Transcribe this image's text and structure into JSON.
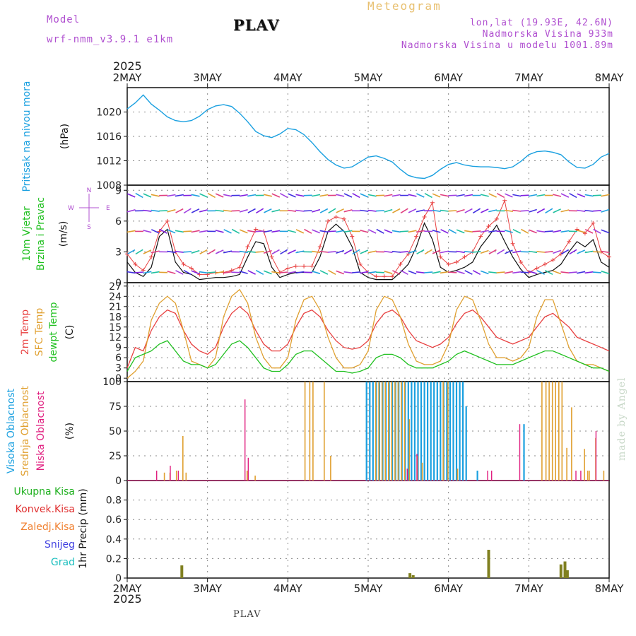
{
  "header": {
    "model_label": "Model",
    "model_name": "wrf-nmm_v3.9.1  e1km",
    "station": "PLAV",
    "title": "Meteogram",
    "lonlat": "lon,lat (19.93E, 42.6N)",
    "elevation": "Nadmorska Visina 933m",
    "model_elevation": "Nadmorska Visina u modelu 1001.89m",
    "year_top": "2025",
    "year_bottom": "2025",
    "footer_station": "PLAV",
    "watermark": "made by Angel"
  },
  "colors": {
    "pressure": "#1aa0e0",
    "temp2m": "#e84040",
    "sfc_temp": "#e0a030",
    "dewpt": "#20c020",
    "wind_speed": "#111111",
    "gust": "#e84040",
    "cloud_high": "#1aa0e0",
    "cloud_mid": "#e0a030",
    "cloud_low": "#e02080",
    "precip_total": "#20b020",
    "precip_conv": "#e03030",
    "precip_freezing": "#f08030",
    "precip_snow": "#4040e0",
    "precip_graupel": "#20c0c0",
    "precip_bar": "#808020"
  },
  "chart_data": [
    {
      "type": "line",
      "name": "pressure",
      "ylabel_lines": [
        "Pritisak na nivou mora",
        "(hPa)"
      ],
      "ylim": [
        1008,
        1024
      ],
      "yticks": [
        "1008",
        "1012",
        "1016",
        "1020"
      ],
      "x": [
        0,
        0.1,
        0.2,
        0.3,
        0.4,
        0.5,
        0.6,
        0.7,
        0.8,
        0.9,
        1.0,
        1.1,
        1.2,
        1.3,
        1.4,
        1.5,
        1.6,
        1.7,
        1.8,
        1.9,
        2.0,
        2.1,
        2.2,
        2.3,
        2.4,
        2.5,
        2.6,
        2.7,
        2.8,
        2.9,
        3.0,
        3.1,
        3.2,
        3.3,
        3.4,
        3.5,
        3.6,
        3.7,
        3.8,
        3.9,
        4.0,
        4.1,
        4.2,
        4.3,
        4.4,
        4.5,
        4.6,
        4.7,
        4.8,
        4.9,
        5.0,
        5.1,
        5.2,
        5.3,
        5.4,
        5.5,
        5.6,
        5.7,
        5.8,
        5.9,
        6.0
      ],
      "values": [
        1020.5,
        1021.5,
        1022.8,
        1021.3,
        1020.3,
        1019.2,
        1018.6,
        1018.4,
        1018.6,
        1019.3,
        1020.4,
        1021.0,
        1021.2,
        1020.9,
        1019.8,
        1018.4,
        1016.8,
        1016.1,
        1015.8,
        1016.4,
        1017.3,
        1017.1,
        1016.3,
        1015.0,
        1013.5,
        1012.2,
        1011.3,
        1010.8,
        1011.0,
        1011.8,
        1012.6,
        1012.8,
        1012.4,
        1011.8,
        1010.6,
        1009.6,
        1009.2,
        1009.1,
        1009.6,
        1010.6,
        1011.4,
        1011.7,
        1011.3,
        1011.1,
        1011.0,
        1011.0,
        1010.9,
        1010.7,
        1011.0,
        1011.9,
        1013.0,
        1013.5,
        1013.6,
        1013.4,
        1013.0,
        1011.8,
        1010.9,
        1010.8,
        1011.4,
        1012.6,
        1013.2
      ]
    },
    {
      "type": "line",
      "name": "wind",
      "ylabel_lines": [
        "10m Vjetar",
        "Brzina i Pravac",
        "(m/s)"
      ],
      "compass_labels": [
        "N",
        "S",
        "W",
        "E"
      ],
      "ylim": [
        0,
        9.5
      ],
      "yticks": [
        "0",
        "3",
        "6",
        "9"
      ],
      "x": [
        0,
        0.1,
        0.2,
        0.3,
        0.4,
        0.5,
        0.6,
        0.7,
        0.8,
        0.9,
        1.0,
        1.1,
        1.2,
        1.3,
        1.4,
        1.5,
        1.6,
        1.7,
        1.8,
        1.9,
        2.0,
        2.1,
        2.2,
        2.3,
        2.4,
        2.5,
        2.6,
        2.7,
        2.8,
        2.9,
        3.0,
        3.1,
        3.2,
        3.3,
        3.4,
        3.5,
        3.6,
        3.7,
        3.8,
        3.9,
        4.0,
        4.1,
        4.2,
        4.3,
        4.4,
        4.5,
        4.6,
        4.7,
        4.8,
        4.9,
        5.0,
        5.1,
        5.2,
        5.3,
        5.4,
        5.5,
        5.6,
        5.7,
        5.8,
        5.9,
        6.0
      ],
      "values": [
        2.0,
        1.0,
        0.6,
        1.5,
        4.5,
        5.2,
        2.0,
        1.0,
        0.8,
        0.3,
        0.4,
        0.5,
        0.5,
        0.6,
        0.8,
        2.5,
        4.0,
        3.8,
        1.5,
        0.5,
        0.8,
        1.0,
        1.0,
        1.0,
        2.5,
        5.0,
        5.7,
        5.0,
        3.5,
        1.0,
        0.5,
        0.3,
        0.3,
        0.3,
        1.0,
        1.8,
        3.5,
        5.8,
        4.2,
        1.5,
        1.0,
        1.2,
        1.5,
        2.0,
        3.5,
        4.5,
        5.6,
        4.0,
        2.5,
        1.3,
        0.5,
        0.8,
        1.0,
        1.2,
        1.8,
        3.0,
        4.0,
        3.5,
        4.2,
        2.0,
        1.5
      ],
      "gust": [
        2.8,
        1.8,
        1.2,
        2.5,
        5.0,
        6.0,
        3.0,
        1.8,
        1.4,
        0.8,
        0.8,
        1.0,
        1.0,
        1.2,
        1.5,
        3.5,
        5.2,
        5.0,
        2.5,
        1.0,
        1.4,
        1.6,
        1.6,
        1.6,
        3.5,
        6.0,
        6.4,
        6.2,
        4.5,
        1.8,
        1.0,
        0.6,
        0.6,
        0.6,
        1.8,
        2.8,
        4.5,
        6.4,
        7.8,
        2.5,
        1.8,
        2.0,
        2.5,
        3.0,
        4.5,
        5.5,
        6.2,
        8.0,
        3.8,
        2.0,
        1.0,
        1.4,
        1.8,
        2.2,
        2.8,
        4.0,
        5.2,
        4.8,
        5.8,
        3.0,
        2.5
      ]
    },
    {
      "type": "line",
      "name": "temperature",
      "ylabel_lines": [
        "2m Temp",
        "SFC Temp",
        "dewpt Temp",
        "(C)"
      ],
      "ylim": [
        -1,
        28
      ],
      "yticks": [
        "0",
        "3",
        "6",
        "9",
        "12",
        "15",
        "18",
        "21",
        "24",
        "27"
      ],
      "x": [
        0,
        0.1,
        0.2,
        0.3,
        0.4,
        0.5,
        0.6,
        0.7,
        0.8,
        0.9,
        1.0,
        1.1,
        1.2,
        1.3,
        1.4,
        1.5,
        1.6,
        1.7,
        1.8,
        1.9,
        2.0,
        2.1,
        2.2,
        2.3,
        2.4,
        2.5,
        2.6,
        2.7,
        2.8,
        2.9,
        3.0,
        3.1,
        3.2,
        3.3,
        3.4,
        3.5,
        3.6,
        3.7,
        3.8,
        3.9,
        4.0,
        4.1,
        4.2,
        4.3,
        4.4,
        4.5,
        4.6,
        4.7,
        4.8,
        4.9,
        5.0,
        5.1,
        5.2,
        5.3,
        5.4,
        5.5,
        5.6,
        5.7,
        5.8,
        5.9,
        6.0
      ],
      "series": [
        {
          "name": "2m Temp",
          "values": [
            3,
            9,
            8,
            14,
            18,
            20,
            19,
            14,
            10,
            8,
            7,
            9,
            15,
            19,
            21,
            19,
            14,
            10,
            8,
            8,
            10,
            15,
            19,
            20,
            18,
            14,
            11,
            9,
            8.5,
            9,
            11,
            16,
            19,
            20,
            18,
            14,
            11,
            10,
            9,
            10,
            12,
            16,
            19,
            20,
            18,
            15,
            12,
            11,
            10,
            11,
            12,
            15,
            18,
            19,
            17,
            15,
            12,
            11,
            10,
            9,
            8
          ]
        },
        {
          "name": "SFC Temp",
          "values": [
            0,
            2,
            5,
            17,
            22,
            24,
            22,
            14,
            5,
            4,
            3,
            6,
            18,
            24,
            26,
            22,
            12,
            6,
            3,
            3,
            6,
            17,
            23,
            24,
            20,
            12,
            6,
            3,
            3,
            4,
            8,
            20,
            24,
            23,
            18,
            10,
            5,
            4,
            4,
            5,
            10,
            20,
            24,
            23,
            17,
            10,
            6,
            6,
            5,
            6,
            9,
            18,
            23,
            23,
            16,
            9,
            5,
            4,
            4,
            3,
            2
          ]
        },
        {
          "name": "dewpt Temp",
          "values": [
            2,
            6,
            7,
            8,
            10,
            11,
            8,
            5,
            4,
            4,
            3,
            4,
            7,
            10,
            11,
            9,
            6,
            3,
            2,
            2,
            4,
            7,
            8,
            8,
            6,
            4,
            2,
            2,
            1.5,
            2,
            3,
            6,
            7,
            7,
            6,
            4,
            3,
            3,
            3,
            4,
            5,
            7,
            8,
            7,
            6,
            5,
            4,
            4,
            4,
            5,
            6,
            7,
            8,
            8,
            7,
            6,
            5,
            4,
            3,
            3,
            2
          ]
        }
      ]
    },
    {
      "type": "bar",
      "name": "cloudiness",
      "ylabel_lines": [
        "Visoka Oblacnost",
        "Srednja Oblacnost",
        "Niska Oblacnost",
        "(%)"
      ],
      "ylim": [
        0,
        100
      ],
      "yticks": [
        "0",
        "25",
        "50",
        "75",
        "100"
      ],
      "high": {
        "x": [
          2.98,
          3.02,
          3.06,
          3.1,
          3.14,
          3.18,
          3.22,
          3.26,
          3.3,
          3.34,
          3.38,
          3.42,
          3.46,
          3.5,
          3.54,
          3.58,
          3.62,
          3.66,
          3.7,
          3.74,
          3.78,
          3.82,
          3.86,
          3.9,
          3.94,
          3.98,
          4.02,
          4.06,
          4.1,
          4.14,
          4.18,
          4.22,
          4.36,
          4.94
        ],
        "values": [
          100,
          100,
          100,
          100,
          100,
          100,
          100,
          100,
          100,
          100,
          100,
          100,
          100,
          100,
          100,
          100,
          100,
          100,
          100,
          100,
          100,
          100,
          100,
          100,
          100,
          100,
          100,
          100,
          100,
          100,
          100,
          75,
          10,
          57
        ]
      },
      "mid": {
        "x": [
          0.45,
          0.52,
          0.6,
          0.68,
          0.72,
          1.48,
          1.58,
          2.2,
          2.26,
          2.3,
          2.44,
          2.52,
          3.08,
          3.12,
          3.16,
          3.2,
          3.24,
          3.28,
          3.32,
          3.36,
          3.4,
          3.44,
          3.5,
          3.6,
          3.66,
          3.92,
          3.98,
          4.1,
          5.15,
          5.2,
          5.24,
          5.28,
          5.32,
          5.36,
          5.4,
          5.46,
          5.52,
          5.68,
          5.72,
          5.74,
          5.82,
          5.92
        ],
        "values": [
          8,
          8,
          10,
          45,
          8,
          10,
          5,
          100,
          100,
          100,
          100,
          25,
          100,
          100,
          100,
          100,
          100,
          100,
          100,
          100,
          100,
          100,
          62,
          25,
          18,
          100,
          100,
          12,
          100,
          100,
          100,
          100,
          100,
          100,
          100,
          33,
          74,
          32,
          10,
          10,
          43,
          10
        ]
      },
      "low": {
        "x": [
          0.38,
          0.55,
          0.65,
          1.48,
          1.52,
          3.5,
          3.62,
          4.5,
          4.55,
          4.9,
          5.6,
          5.66,
          5.85
        ],
        "values": [
          10,
          15,
          10,
          82,
          23,
          12,
          27,
          10,
          10,
          57,
          10,
          10,
          50
        ]
      }
    },
    {
      "type": "bar",
      "name": "precipitation",
      "ylabel_lines": [
        "1hr Precip (mm)"
      ],
      "legend": [
        "Ukupna Kisa",
        "Konvek.Kisa",
        "Zaledj.Kisa",
        "Snijeg",
        "Grad"
      ],
      "ylim": [
        0,
        1.0
      ],
      "yticks": [
        "0",
        "0.2",
        "0.4",
        "0.6",
        "0.8"
      ],
      "x": [
        0.68,
        3.52,
        3.56,
        4.5,
        5.4,
        5.45,
        5.48
      ],
      "values": [
        0.13,
        0.05,
        0.03,
        0.29,
        0.14,
        0.17,
        0.08
      ]
    }
  ],
  "xaxis": {
    "labels": [
      "2MAY",
      "3MAY",
      "4MAY",
      "5MAY",
      "6MAY",
      "7MAY",
      "8MAY"
    ]
  }
}
